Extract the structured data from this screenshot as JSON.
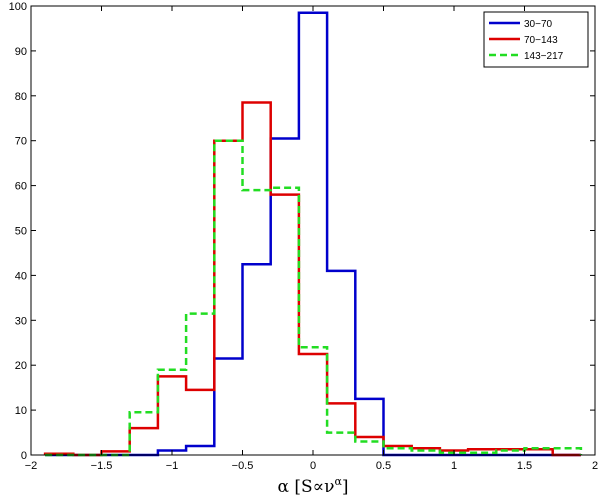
{
  "chart_data": {
    "type": "line",
    "step": true,
    "xlabel_base": "α [S∝ν",
    "xlabel_sup": "α",
    "xlabel_close": "]",
    "ylabel": "",
    "xlim": [
      -2,
      2
    ],
    "ylim": [
      0,
      100
    ],
    "xticks": [
      -2,
      -1.5,
      -1,
      -0.5,
      0,
      0.5,
      1,
      1.5,
      2
    ],
    "yticks": [
      0,
      10,
      20,
      30,
      40,
      50,
      60,
      70,
      80,
      90,
      100
    ],
    "xtick_labels": [
      "−2",
      "−1.5",
      "−1",
      "−0.5",
      "0",
      "0.5",
      "1",
      "1.5",
      "2"
    ],
    "ytick_labels": [
      "0",
      "10",
      "20",
      "30",
      "40",
      "50",
      "60",
      "70",
      "80",
      "90",
      "100"
    ],
    "grid": false,
    "legend_position": "top-right",
    "series": [
      {
        "name": "30−70",
        "color": "#0000cc",
        "dash": "solid",
        "edges": [
          -1.9,
          -1.7,
          -1.5,
          -1.3,
          -1.1,
          -0.9,
          -0.7,
          -0.5,
          -0.3,
          -0.1,
          0.1,
          0.3,
          0.5,
          0.7,
          0.9,
          1.1,
          1.3,
          1.5,
          1.7,
          1.9
        ],
        "values": [
          0,
          0,
          0,
          0,
          1,
          2,
          21.5,
          42.5,
          70.5,
          98.5,
          41,
          12.5,
          0,
          0,
          0,
          0,
          0,
          0,
          0
        ]
      },
      {
        "name": "70−143",
        "color": "#dd0000",
        "dash": "solid",
        "edges": [
          -1.9,
          -1.7,
          -1.5,
          -1.3,
          -1.1,
          -0.9,
          -0.7,
          -0.5,
          -0.3,
          -0.1,
          0.1,
          0.3,
          0.5,
          0.7,
          0.9,
          1.1,
          1.3,
          1.5,
          1.7,
          1.9
        ],
        "values": [
          0.3,
          0,
          0.8,
          6,
          17.5,
          14.5,
          70,
          78.5,
          58,
          22.5,
          11.5,
          4,
          2,
          1.5,
          1,
          1.3,
          1.3,
          1.3,
          0
        ]
      },
      {
        "name": "143−217",
        "color": "#22dd22",
        "dash": "dashed",
        "edges": [
          -1.9,
          -1.7,
          -1.5,
          -1.3,
          -1.1,
          -0.9,
          -0.7,
          -0.5,
          -0.3,
          -0.1,
          0.1,
          0.3,
          0.5,
          0.7,
          0.9,
          1.1,
          1.3,
          1.5,
          1.7,
          1.9
        ],
        "values": [
          0,
          0,
          0,
          9.5,
          19,
          31.5,
          70,
          59,
          59.5,
          24,
          5,
          3,
          1.5,
          1,
          0.5,
          0.5,
          1,
          1.5,
          1.5
        ]
      }
    ]
  }
}
